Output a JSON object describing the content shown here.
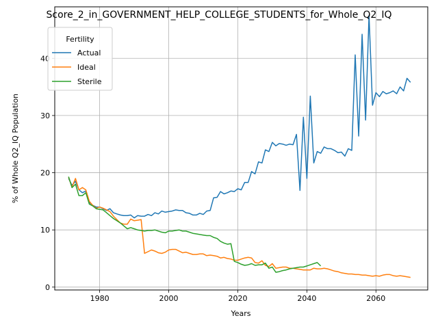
{
  "chart_data": {
    "type": "line",
    "title": "Score_2_in_GOVERNMENT_HELP_COLLEGE_STUDENTS_for_Whole_Q2_IQ",
    "xlabel": "Years",
    "ylabel": "% of Whole Q2_IQ Population",
    "xlim": [
      1967,
      2075
    ],
    "ylim": [
      -0.5,
      49.0
    ],
    "xticks": [
      1980,
      2000,
      2020,
      2040,
      2060
    ],
    "yticks": [
      0,
      10,
      20,
      30,
      40
    ],
    "grid": true,
    "legend": {
      "title": "Fertility",
      "placement": "top-left"
    },
    "series": [
      {
        "name": "Actual",
        "color": "#1f77b4",
        "x": [
          1971,
          1972,
          1973,
          1974,
          1975,
          1976,
          1977,
          1978,
          1979,
          1980,
          1981,
          1982,
          1983,
          1984,
          1985,
          1986,
          1987,
          1988,
          1989,
          1990,
          1991,
          1992,
          1993,
          1994,
          1995,
          1996,
          1997,
          1998,
          1999,
          2000,
          2001,
          2002,
          2003,
          2004,
          2005,
          2006,
          2007,
          2008,
          2009,
          2010,
          2011,
          2012,
          2013,
          2014,
          2015,
          2016,
          2017,
          2018,
          2019,
          2020,
          2021,
          2022,
          2023,
          2024,
          2025,
          2026,
          2027,
          2028,
          2029,
          2030,
          2031,
          2032,
          2033,
          2034,
          2035,
          2036,
          2037,
          2038,
          2039,
          2040,
          2041,
          2042,
          2043,
          2044,
          2045,
          2046,
          2047,
          2048,
          2049,
          2050,
          2051,
          2052,
          2053,
          2054,
          2055,
          2056,
          2057,
          2058,
          2059,
          2060,
          2061,
          2062,
          2063,
          2064,
          2065,
          2066,
          2067,
          2068,
          2069,
          2070
        ],
        "values": [
          19.0,
          17.8,
          18.5,
          17.0,
          16.5,
          16.8,
          14.8,
          14.3,
          14.0,
          14.0,
          13.7,
          13.4,
          13.7,
          13.0,
          12.8,
          12.6,
          12.5,
          12.5,
          12.6,
          12.1,
          12.5,
          12.4,
          12.4,
          12.7,
          12.5,
          13.0,
          12.8,
          13.3,
          13.1,
          13.2,
          13.3,
          13.5,
          13.4,
          13.4,
          13.0,
          12.9,
          12.6,
          12.6,
          12.9,
          12.7,
          13.3,
          13.4,
          15.6,
          15.7,
          16.7,
          16.3,
          16.5,
          16.8,
          16.7,
          17.2,
          17.0,
          18.3,
          18.3,
          20.2,
          19.8,
          21.9,
          21.7,
          24.0,
          23.7,
          25.3,
          24.7,
          25.1,
          25.0,
          24.8,
          25.0,
          24.9,
          26.7,
          16.9,
          29.7,
          19.0,
          33.4,
          21.7,
          23.7,
          23.4,
          24.5,
          24.2,
          24.2,
          23.9,
          23.5,
          23.6,
          22.9,
          24.2,
          23.9,
          40.6,
          26.4,
          44.2,
          29.2,
          47.5,
          31.8,
          34.0,
          33.3,
          34.2,
          33.8,
          34.0,
          34.3,
          33.8,
          35.0,
          34.3,
          36.5,
          35.8
        ]
      },
      {
        "name": "Ideal",
        "color": "#ff7f0e",
        "x": [
          1971,
          1972,
          1973,
          1974,
          1975,
          1976,
          1977,
          1978,
          1979,
          1980,
          1981,
          1982,
          1983,
          1984,
          1985,
          1986,
          1987,
          1988,
          1989,
          1990,
          1991,
          1992,
          1993,
          1994,
          1995,
          1996,
          1997,
          1998,
          1999,
          2000,
          2001,
          2002,
          2003,
          2004,
          2005,
          2006,
          2007,
          2008,
          2009,
          2010,
          2011,
          2012,
          2013,
          2014,
          2015,
          2016,
          2017,
          2018,
          2019,
          2020,
          2021,
          2022,
          2023,
          2024,
          2025,
          2026,
          2027,
          2028,
          2029,
          2030,
          2031,
          2032,
          2033,
          2034,
          2035,
          2036,
          2037,
          2038,
          2039,
          2040,
          2041,
          2042,
          2043,
          2044,
          2045,
          2046,
          2047,
          2048,
          2049,
          2050,
          2051,
          2052,
          2053,
          2054,
          2055,
          2056,
          2057,
          2058,
          2059,
          2060,
          2061,
          2062,
          2063,
          2064,
          2065,
          2066,
          2067,
          2068,
          2069,
          2070
        ],
        "values": [
          19.2,
          17.5,
          19.0,
          17.0,
          17.4,
          17.0,
          15.0,
          14.3,
          13.8,
          14.0,
          13.8,
          13.5,
          13.2,
          12.4,
          11.8,
          11.2,
          11.0,
          11.0,
          11.9,
          11.6,
          11.7,
          11.8,
          5.9,
          6.2,
          6.5,
          6.3,
          6.0,
          5.9,
          6.1,
          6.5,
          6.6,
          6.6,
          6.3,
          6.0,
          6.1,
          5.9,
          5.7,
          5.7,
          5.8,
          5.8,
          5.5,
          5.6,
          5.5,
          5.4,
          5.1,
          5.2,
          5.0,
          4.9,
          4.7,
          4.7,
          4.9,
          5.1,
          5.2,
          5.1,
          4.3,
          4.2,
          4.6,
          3.8,
          3.6,
          4.1,
          3.3,
          3.4,
          3.5,
          3.5,
          3.3,
          3.3,
          3.2,
          3.1,
          3.0,
          3.0,
          3.0,
          3.3,
          3.2,
          3.2,
          3.3,
          3.2,
          3.0,
          2.8,
          2.7,
          2.5,
          2.4,
          2.3,
          2.3,
          2.2,
          2.2,
          2.1,
          2.1,
          2.0,
          1.9,
          2.0,
          1.9,
          2.1,
          2.2,
          2.2,
          2.0,
          1.9,
          2.0,
          1.9,
          1.8,
          1.7
        ]
      },
      {
        "name": "Sterile",
        "color": "#2ca02c",
        "x": [
          1971,
          1972,
          1973,
          1974,
          1975,
          1976,
          1977,
          1978,
          1979,
          1980,
          1981,
          1982,
          1983,
          1984,
          1985,
          1986,
          1987,
          1988,
          1989,
          1990,
          1991,
          1992,
          1993,
          1994,
          1995,
          1996,
          1997,
          1998,
          1999,
          2000,
          2001,
          2002,
          2003,
          2004,
          2005,
          2006,
          2007,
          2008,
          2009,
          2010,
          2011,
          2012,
          2013,
          2014,
          2015,
          2016,
          2017,
          2018,
          2019,
          2020,
          2021,
          2022,
          2023,
          2024,
          2025,
          2026,
          2027,
          2028,
          2029,
          2030,
          2031,
          2032,
          2033,
          2034,
          2035,
          2036,
          2037,
          2038,
          2039,
          2040,
          2041,
          2042,
          2043,
          2044
        ],
        "values": [
          19.3,
          17.4,
          18.0,
          16.0,
          16.0,
          16.5,
          14.5,
          14.2,
          13.7,
          13.6,
          13.5,
          13.0,
          12.5,
          12.0,
          11.6,
          11.2,
          10.7,
          10.2,
          10.4,
          10.2,
          10.0,
          9.9,
          9.8,
          9.9,
          9.9,
          10.0,
          9.8,
          9.6,
          9.5,
          9.8,
          9.8,
          9.9,
          10.0,
          9.8,
          9.8,
          9.6,
          9.4,
          9.3,
          9.2,
          9.1,
          9.0,
          9.0,
          8.7,
          8.5,
          8.0,
          7.7,
          7.5,
          7.6,
          4.5,
          4.3,
          4.0,
          3.8,
          3.9,
          4.1,
          3.8,
          3.9,
          3.9,
          4.2,
          3.3,
          3.5,
          2.6,
          2.7,
          2.9,
          3.0,
          3.2,
          3.3,
          3.4,
          3.5,
          3.5,
          3.7,
          3.9,
          4.1,
          4.3,
          3.7
        ]
      }
    ]
  }
}
